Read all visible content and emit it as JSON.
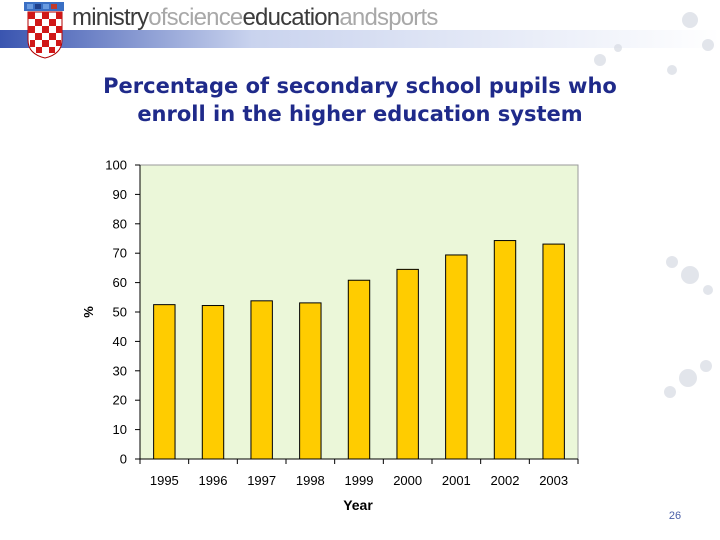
{
  "header": {
    "logo_words": [
      "ministry",
      "ofscience",
      "education",
      "andsports"
    ]
  },
  "title_lines": [
    "Percentage of secondary school pupils who",
    "enroll in the higher education system"
  ],
  "page_number": "26",
  "colors": {
    "bar": "#ffcc00",
    "plot_background": "#ebf7d9",
    "title": "#1f2a8a",
    "header_band": "#c9d3ee"
  },
  "chart_data": {
    "type": "bar",
    "categories": [
      "1995",
      "1996",
      "1997",
      "1998",
      "1999",
      "2000",
      "2001",
      "2002",
      "2003"
    ],
    "values": [
      52.5,
      52.2,
      53.8,
      53.1,
      60.8,
      64.5,
      69.4,
      74.3,
      73.1
    ],
    "xlabel": "Year",
    "ylabel": "%",
    "ylim": [
      0,
      100
    ],
    "yticks": [
      0,
      10,
      20,
      30,
      40,
      50,
      60,
      70,
      80,
      90,
      100
    ],
    "grid": false,
    "legend": "none"
  }
}
